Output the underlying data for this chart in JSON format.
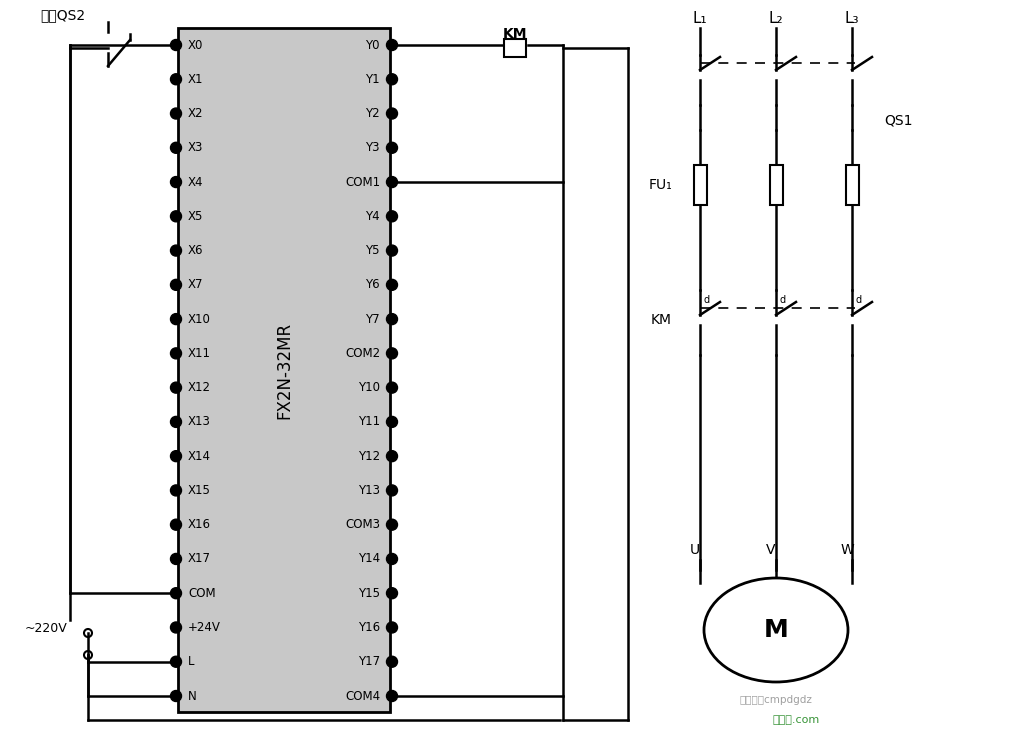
{
  "bg_color": "#ffffff",
  "plc_label": "FX2N-32MR",
  "left_pins": [
    "X0",
    "X1",
    "X2",
    "X3",
    "X4",
    "X5",
    "X6",
    "X7",
    "X10",
    "X11",
    "X12",
    "X13",
    "X14",
    "X15",
    "X16",
    "X17",
    "COM",
    "+24V",
    "L",
    "N"
  ],
  "right_pins": [
    "Y0",
    "Y1",
    "Y2",
    "Y3",
    "COM1",
    "Y4",
    "Y5",
    "Y6",
    "Y7",
    "COM2",
    "Y10",
    "Y11",
    "Y12",
    "Y13",
    "COM3",
    "Y14",
    "Y15",
    "Y16",
    "Y17",
    "COM4"
  ],
  "watermark1": "微信号：cmpdgdz",
  "watermark2": "接线图.com",
  "phase_labels": [
    "L₁",
    "L₂",
    "L₃"
  ],
  "uvw_labels": [
    "U",
    "V",
    "W"
  ]
}
